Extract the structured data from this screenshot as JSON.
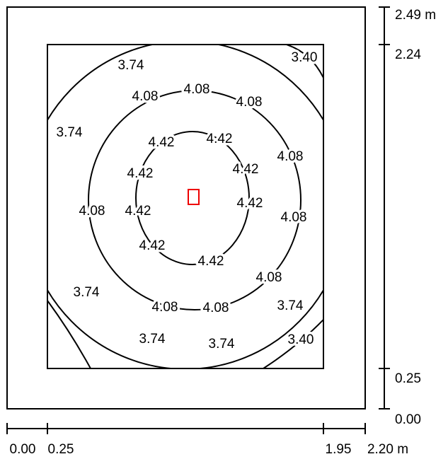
{
  "x_scale": {
    "ticks": [
      "0.00",
      "0.25",
      "1.95",
      "2.20 m"
    ]
  },
  "y_scale": {
    "ticks": [
      "2.49 m",
      "2.24",
      "0.25",
      "0.00"
    ]
  },
  "contour_labels": [
    "3.74",
    "3.40",
    "4.08",
    "4.08",
    "4.08",
    "3.74",
    "4.42",
    "4.42",
    "4.08",
    "4.42",
    "4.42",
    "4.08",
    "4.42",
    "4.42",
    "4.08",
    "4.42",
    "4.42",
    "4.08",
    "3.74",
    "4.08",
    "4.08",
    "3.74",
    "3.74",
    "3.74",
    "3.40"
  ]
}
